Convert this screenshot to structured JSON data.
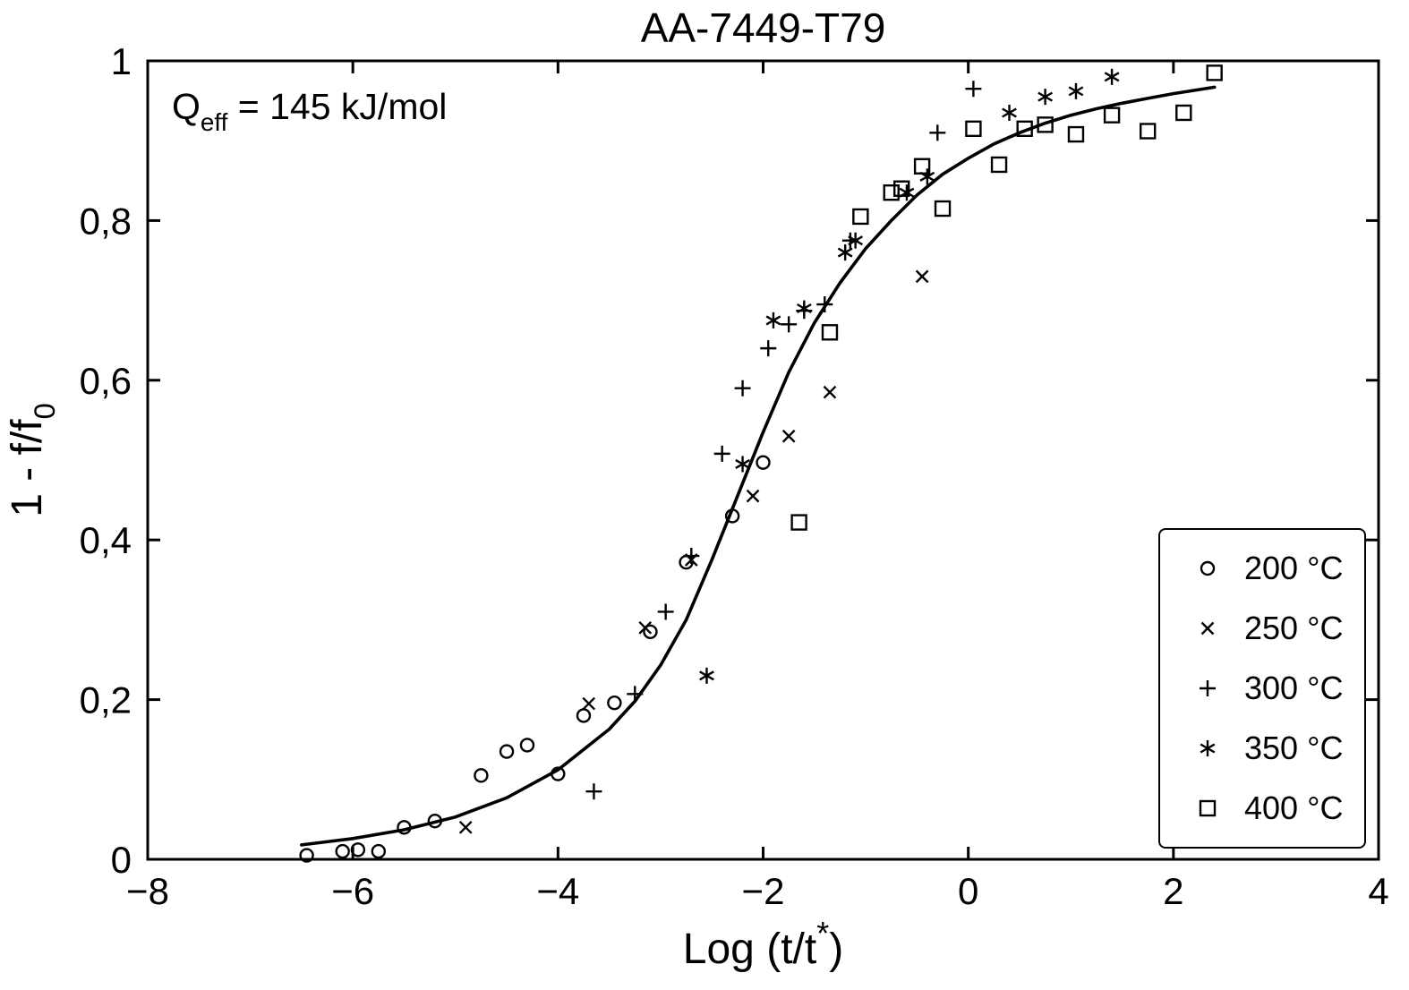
{
  "colors": {
    "foreground": "#000000",
    "background": "#ffffff"
  },
  "chart": {
    "annotation_parts": {
      "base": "Q",
      "sub": "eff",
      "rest": " = 145 kJ/mol"
    },
    "xlabel_parts": {
      "base": "Log (t/t",
      "sup": "*",
      "close": ")"
    },
    "ylabel_parts": {
      "base": "1 - f/f",
      "sub": "0"
    }
  },
  "chart_data": {
    "type": "scatter",
    "title": "AA-7449-T79",
    "xlabel": "Log (t/t*)",
    "ylabel": "1 - f/f0",
    "annotation": "Qeff = 145 kJ/mol",
    "xlim": [
      -8,
      4
    ],
    "ylim": [
      0,
      1
    ],
    "x_ticks": [
      -8,
      -6,
      -4,
      -2,
      0,
      2,
      4
    ],
    "x_tick_labels": [
      "−8",
      "−6",
      "−4",
      "−2",
      "0",
      "2",
      "4"
    ],
    "y_ticks": [
      0,
      0.2,
      0.4,
      0.6,
      0.8,
      1
    ],
    "y_tick_labels": [
      "0",
      "0,2",
      "0,4",
      "0,6",
      "0,8",
      "1"
    ],
    "grid": false,
    "legend_position": "lower right",
    "series": [
      {
        "name": "200C",
        "label": "200 °C",
        "marker": "circle",
        "points": [
          [
            -6.45,
            0.005
          ],
          [
            -6.1,
            0.01
          ],
          [
            -5.95,
            0.012
          ],
          [
            -5.75,
            0.01
          ],
          [
            -5.5,
            0.04
          ],
          [
            -5.2,
            0.048
          ],
          [
            -4.75,
            0.105
          ],
          [
            -4.5,
            0.135
          ],
          [
            -4.3,
            0.143
          ],
          [
            -4.0,
            0.107
          ],
          [
            -3.75,
            0.18
          ],
          [
            -3.45,
            0.196
          ],
          [
            -3.1,
            0.285
          ],
          [
            -2.75,
            0.372
          ],
          [
            -2.3,
            0.43
          ],
          [
            -2.0,
            0.497
          ]
        ]
      },
      {
        "name": "250C",
        "label": "250 °C",
        "marker": "x",
        "points": [
          [
            -4.9,
            0.04
          ],
          [
            -3.7,
            0.195
          ],
          [
            -3.15,
            0.29
          ],
          [
            -2.7,
            0.375
          ],
          [
            -2.1,
            0.455
          ],
          [
            -1.75,
            0.53
          ],
          [
            -1.35,
            0.585
          ],
          [
            -0.45,
            0.73
          ]
        ]
      },
      {
        "name": "300C",
        "label": "300 °C",
        "marker": "plus",
        "points": [
          [
            -3.65,
            0.085
          ],
          [
            -3.25,
            0.207
          ],
          [
            -2.95,
            0.31
          ],
          [
            -2.7,
            0.38
          ],
          [
            -2.4,
            0.508
          ],
          [
            -2.2,
            0.59
          ],
          [
            -1.95,
            0.64
          ],
          [
            -1.75,
            0.67
          ],
          [
            -1.6,
            0.687
          ],
          [
            -1.4,
            0.695
          ],
          [
            -1.15,
            0.775
          ],
          [
            -0.3,
            0.91
          ],
          [
            0.05,
            0.965
          ]
        ]
      },
      {
        "name": "350C",
        "label": "350 °C",
        "marker": "asterisk",
        "points": [
          [
            -2.55,
            0.23
          ],
          [
            -2.2,
            0.495
          ],
          [
            -1.9,
            0.675
          ],
          [
            -1.6,
            0.69
          ],
          [
            -1.2,
            0.76
          ],
          [
            -1.1,
            0.775
          ],
          [
            -0.6,
            0.835
          ],
          [
            -0.4,
            0.855
          ],
          [
            0.4,
            0.935
          ],
          [
            0.75,
            0.955
          ],
          [
            1.05,
            0.962
          ],
          [
            1.4,
            0.98
          ]
        ]
      },
      {
        "name": "400C",
        "label": "400 °C",
        "marker": "square",
        "points": [
          [
            -1.65,
            0.422
          ],
          [
            -1.35,
            0.66
          ],
          [
            -1.05,
            0.805
          ],
          [
            -0.75,
            0.835
          ],
          [
            -0.65,
            0.84
          ],
          [
            -0.45,
            0.868
          ],
          [
            -0.25,
            0.815
          ],
          [
            0.05,
            0.915
          ],
          [
            0.3,
            0.87
          ],
          [
            0.55,
            0.915
          ],
          [
            0.75,
            0.92
          ],
          [
            1.05,
            0.908
          ],
          [
            1.4,
            0.932
          ],
          [
            1.75,
            0.912
          ],
          [
            2.1,
            0.935
          ],
          [
            2.4,
            0.985
          ]
        ]
      }
    ],
    "fit_curve": {
      "name": "sigmoid-fit",
      "points": [
        [
          -6.5,
          0.018
        ],
        [
          -6.0,
          0.026
        ],
        [
          -5.5,
          0.037
        ],
        [
          -5.0,
          0.053
        ],
        [
          -4.5,
          0.077
        ],
        [
          -4.0,
          0.112
        ],
        [
          -3.5,
          0.163
        ],
        [
          -3.25,
          0.198
        ],
        [
          -3.0,
          0.243
        ],
        [
          -2.75,
          0.3
        ],
        [
          -2.5,
          0.375
        ],
        [
          -2.25,
          0.455
        ],
        [
          -2.0,
          0.535
        ],
        [
          -1.75,
          0.61
        ],
        [
          -1.5,
          0.672
        ],
        [
          -1.25,
          0.722
        ],
        [
          -1.0,
          0.765
        ],
        [
          -0.75,
          0.8
        ],
        [
          -0.5,
          0.832
        ],
        [
          -0.25,
          0.858
        ],
        [
          0.0,
          0.878
        ],
        [
          0.25,
          0.896
        ],
        [
          0.5,
          0.91
        ],
        [
          0.75,
          0.922
        ],
        [
          1.0,
          0.932
        ],
        [
          1.25,
          0.94
        ],
        [
          1.5,
          0.947
        ],
        [
          1.75,
          0.953
        ],
        [
          2.0,
          0.959
        ],
        [
          2.2,
          0.963
        ],
        [
          2.4,
          0.967
        ]
      ]
    }
  }
}
